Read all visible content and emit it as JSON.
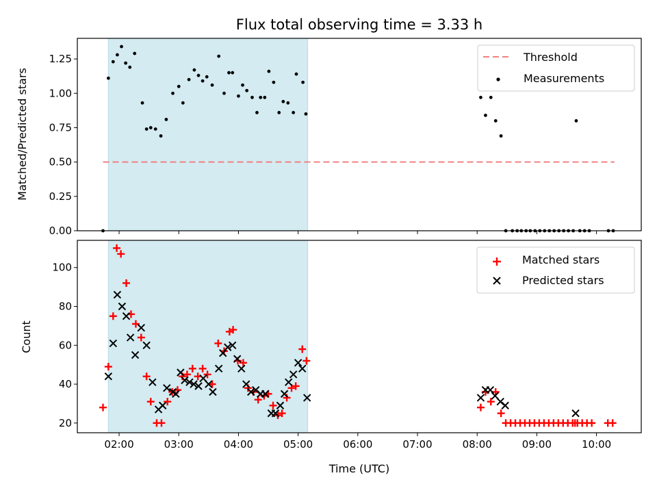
{
  "chart_data": {
    "title": "Flux total observing time = 3.33 h",
    "xlabel": "Time (UTC)",
    "xlim_hours": [
      1.3,
      10.75
    ],
    "xticks": [
      {
        "t": 2,
        "label": "02:00"
      },
      {
        "t": 3,
        "label": "03:00"
      },
      {
        "t": 4,
        "label": "04:00"
      },
      {
        "t": 5,
        "label": "05:00"
      },
      {
        "t": 6,
        "label": "06:00"
      },
      {
        "t": 7,
        "label": "07:00"
      },
      {
        "t": 8,
        "label": "08:00"
      },
      {
        "t": 9,
        "label": "09:00"
      },
      {
        "t": 10,
        "label": "10:00"
      }
    ],
    "shaded_span_hours": [
      1.82,
      5.16
    ],
    "colors": {
      "shade": "#d3ebf1",
      "threshold": "#f08080",
      "matched": "#ff0000",
      "predicted": "#000000",
      "measure": "#000000"
    },
    "panels": [
      {
        "type": "scatter",
        "ylabel": "Matched/Predicted stars",
        "ylim": [
          0,
          1.4
        ],
        "yticks": [
          "0.00",
          "0.25",
          "0.50",
          "0.75",
          "1.00",
          "1.25"
        ],
        "legend": [
          {
            "label": "Threshold"
          },
          {
            "label": "Measurements"
          }
        ],
        "threshold": {
          "value": 0.5,
          "x_range": [
            1.73,
            10.3
          ]
        },
        "series": [
          {
            "name": "Measurements",
            "x": [
              1.73,
              1.82,
              1.9,
              1.97,
              2.04,
              2.11,
              2.18,
              2.26,
              2.39,
              2.46,
              2.53,
              2.61,
              2.7,
              2.79,
              2.9,
              3.0,
              3.07,
              3.17,
              3.26,
              3.33,
              3.4,
              3.47,
              3.56,
              3.67,
              3.76,
              3.84,
              3.9,
              4.0,
              4.07,
              4.14,
              4.23,
              4.31,
              4.37,
              4.44,
              4.51,
              4.59,
              4.68,
              4.75,
              4.83,
              4.92,
              4.97,
              5.08,
              5.13,
              8.06,
              8.14,
              8.23,
              8.31,
              8.4,
              8.48,
              8.59,
              8.67,
              8.74,
              8.82,
              8.89,
              8.97,
              9.05,
              9.13,
              9.21,
              9.29,
              9.37,
              9.45,
              9.53,
              9.61,
              9.66,
              9.72,
              9.8,
              9.88,
              10.2,
              10.28
            ],
            "y": [
              0,
              1.11,
              1.23,
              1.28,
              1.34,
              1.22,
              1.19,
              1.29,
              0.93,
              0.74,
              0.75,
              0.74,
              0.69,
              0.81,
              1.0,
              1.05,
              0.93,
              1.1,
              1.17,
              1.13,
              1.09,
              1.12,
              1.06,
              1.27,
              1.0,
              1.15,
              1.15,
              0.98,
              1.06,
              1.02,
              0.97,
              0.86,
              0.97,
              0.97,
              1.16,
              1.08,
              0.86,
              0.94,
              0.93,
              0.86,
              1.14,
              1.08,
              0.85,
              0.97,
              0.84,
              0.97,
              0.8,
              0.69,
              0,
              0,
              0,
              0,
              0,
              0,
              0,
              0,
              0,
              0,
              0,
              0,
              0,
              0,
              0,
              0.8,
              0,
              0,
              0,
              0,
              0
            ]
          }
        ]
      },
      {
        "type": "scatter",
        "ylabel": "Count",
        "ylim": [
          15,
          114
        ],
        "yticks": [
          "20",
          "40",
          "60",
          "80",
          "100"
        ],
        "legend": [
          {
            "label": "Matched stars"
          },
          {
            "label": "Predicted stars"
          }
        ],
        "series": [
          {
            "name": "Matched stars",
            "x": [
              1.73,
              1.82,
              1.9,
              1.96,
              2.03,
              2.12,
              2.2,
              2.28,
              2.37,
              2.46,
              2.53,
              2.63,
              2.71,
              2.81,
              2.89,
              2.98,
              3.06,
              3.14,
              3.23,
              3.32,
              3.4,
              3.48,
              3.56,
              3.66,
              3.76,
              3.85,
              3.91,
              3.99,
              4.08,
              4.16,
              4.25,
              4.33,
              4.43,
              4.5,
              4.58,
              4.66,
              4.73,
              4.81,
              4.89,
              4.96,
              5.07,
              5.14,
              8.06,
              8.14,
              8.23,
              8.31,
              8.4,
              8.48,
              8.56,
              8.64,
              8.72,
              8.8,
              8.88,
              8.96,
              9.04,
              9.12,
              9.2,
              9.28,
              9.36,
              9.44,
              9.52,
              9.6,
              9.64,
              9.68,
              9.76,
              9.84,
              9.92,
              10.19,
              10.27
            ],
            "y": [
              28,
              49,
              75,
              110,
              107,
              92,
              76,
              71,
              64,
              44,
              31,
              20,
              20,
              31,
              36,
              37,
              44,
              45,
              48,
              44,
              48,
              45,
              40,
              61,
              57,
              67,
              68,
              52,
              51,
              38,
              36,
              32,
              34,
              35,
              29,
              24,
              25,
              33,
              38,
              39,
              58,
              52,
              28,
              36,
              31,
              36,
              25,
              20,
              20,
              20,
              20,
              20,
              20,
              20,
              20,
              20,
              20,
              20,
              20,
              20,
              20,
              20,
              20,
              20,
              20,
              20,
              20,
              20,
              20
            ]
          },
          {
            "name": "Predicted stars",
            "x": [
              1.82,
              1.9,
              1.97,
              2.05,
              2.12,
              2.19,
              2.27,
              2.37,
              2.46,
              2.56,
              2.66,
              2.73,
              2.8,
              2.9,
              2.95,
              3.03,
              3.1,
              3.18,
              3.25,
              3.33,
              3.41,
              3.5,
              3.57,
              3.67,
              3.74,
              3.82,
              3.9,
              3.98,
              4.05,
              4.13,
              4.21,
              4.29,
              4.37,
              4.45,
              4.55,
              4.62,
              4.7,
              4.77,
              4.84,
              4.92,
              5.0,
              5.07,
              5.15,
              8.06,
              8.14,
              8.22,
              8.3,
              8.39,
              8.47,
              9.65
            ],
            "y": [
              44,
              61,
              86,
              80,
              75,
              64,
              55,
              69,
              60,
              41,
              27,
              29,
              38,
              36,
              35,
              46,
              42,
              41,
              40,
              39,
              43,
              40,
              36,
              48,
              56,
              59,
              60,
              53,
              48,
              40,
              36,
              37,
              35,
              35,
              25,
              25,
              29,
              35,
              41,
              45,
              51,
              48,
              33,
              33,
              37,
              37,
              34,
              31,
              29,
              25
            ]
          }
        ]
      }
    ]
  }
}
